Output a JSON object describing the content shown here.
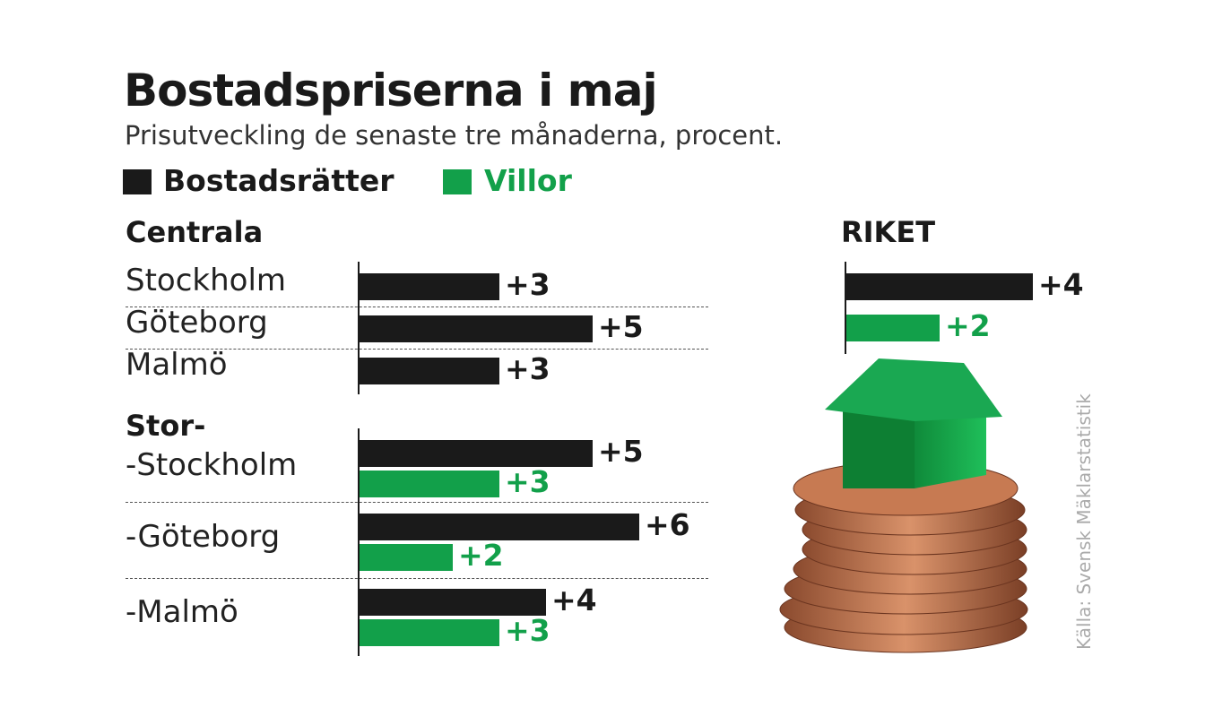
{
  "colors": {
    "bostadsratter": "#1a1a1a",
    "villor": "#12a04a"
  },
  "chart_data": {
    "type": "bar",
    "orientation": "horizontal",
    "title": "Bostadspriserna i maj",
    "subtitle": "Prisutveckling de senaste tre månaderna, procent.",
    "legend": [
      {
        "name": "Bostadsrätter",
        "color": "#1a1a1a"
      },
      {
        "name": "Villor",
        "color": "#12a04a"
      }
    ],
    "groups": [
      {
        "label": "Centrala",
        "rows": [
          {
            "label": "Stockholm",
            "bostadsratter": 3,
            "bostadsratter_label": "+3"
          },
          {
            "label": "Göteborg",
            "bostadsratter": 5,
            "bostadsratter_label": "+5"
          },
          {
            "label": "Malmö",
            "bostadsratter": 3,
            "bostadsratter_label": "+3"
          }
        ]
      },
      {
        "label": "Stor-",
        "rows": [
          {
            "label": "-Stockholm",
            "bostadsratter": 5,
            "bostadsratter_label": "+5",
            "villor": 3,
            "villor_label": "+3"
          },
          {
            "label": "-Göteborg",
            "bostadsratter": 6,
            "bostadsratter_label": "+6",
            "villor": 2,
            "villor_label": "+2"
          },
          {
            "label": "-Malmö",
            "bostadsratter": 4,
            "bostadsratter_label": "+4",
            "villor": 3,
            "villor_label": "+3"
          }
        ]
      }
    ],
    "riket": {
      "label": "RIKET",
      "bostadsratter": 4,
      "bostadsratter_label": "+4",
      "villor": 2,
      "villor_label": "+2"
    },
    "source": "Källa: Svensk Mäklarstatistik",
    "grid": false
  }
}
